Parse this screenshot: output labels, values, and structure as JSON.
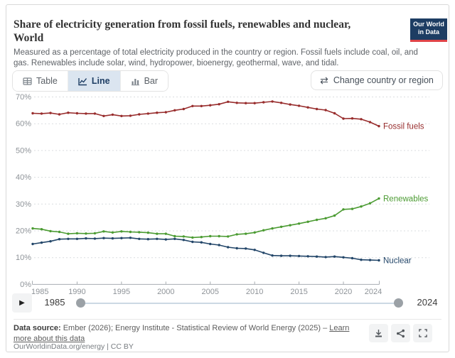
{
  "header": {
    "title_line1": "Share of electricity generation from fossil fuels, renewables and nuclear,",
    "title_line2": "World",
    "subtitle": "Measured as a percentage of total electricity produced in the country or region. Fossil fuels include coal, oil, and gas. Renewables include solar, wind, hydropower, bioenergy, geothermal, wave, and tidal.",
    "logo_line1": "Our World",
    "logo_line2": "in Data"
  },
  "toolbar": {
    "tabs": [
      {
        "label": "Table",
        "active": false
      },
      {
        "label": "Line",
        "active": true
      },
      {
        "label": "Bar",
        "active": false
      }
    ],
    "change_button": "Change country or region",
    "swap_icon": "⇄"
  },
  "chart_data": {
    "type": "line",
    "title": "Share of electricity generation from fossil fuels, renewables and nuclear, World",
    "unit": "%",
    "grid": "horizontal-dashed",
    "legend": "end-of-line entity labels",
    "ylim": [
      0,
      70
    ],
    "yticks": [
      0,
      10,
      20,
      30,
      40,
      50,
      60,
      70
    ],
    "xticks": [
      1985,
      1990,
      1995,
      2000,
      2005,
      2010,
      2015,
      2020,
      2024
    ],
    "x": [
      1985,
      1986,
      1987,
      1988,
      1989,
      1990,
      1991,
      1992,
      1993,
      1994,
      1995,
      1996,
      1997,
      1998,
      1999,
      2000,
      2001,
      2002,
      2003,
      2004,
      2005,
      2006,
      2007,
      2008,
      2009,
      2010,
      2011,
      2012,
      2013,
      2014,
      2015,
      2016,
      2017,
      2018,
      2019,
      2020,
      2021,
      2022,
      2023,
      2024
    ],
    "series": [
      {
        "name": "Fossil fuels",
        "color": "#982d2d",
        "values": [
          63.9,
          63.8,
          64.0,
          63.5,
          64.1,
          63.9,
          63.8,
          63.8,
          62.9,
          63.4,
          62.9,
          63.0,
          63.5,
          63.8,
          64.1,
          64.3,
          65.0,
          65.5,
          66.6,
          66.6,
          66.9,
          67.3,
          68.2,
          67.8,
          67.7,
          67.7,
          68.0,
          68.3,
          67.8,
          67.2,
          66.7,
          66.1,
          65.5,
          65.1,
          63.9,
          61.9,
          62.0,
          61.7,
          60.6,
          59.1
        ]
      },
      {
        "name": "Renewables",
        "color": "#4b9b32",
        "values": [
          20.9,
          20.6,
          19.9,
          19.6,
          18.9,
          19.1,
          19.0,
          19.1,
          19.8,
          19.4,
          19.8,
          19.6,
          19.5,
          19.3,
          18.9,
          18.9,
          18.0,
          17.9,
          17.5,
          17.7,
          18.0,
          18.0,
          17.9,
          18.7,
          18.9,
          19.4,
          20.2,
          20.9,
          21.5,
          22.1,
          22.7,
          23.4,
          24.1,
          24.7,
          25.7,
          28.0,
          28.2,
          29.1,
          30.3,
          32.1
        ]
      },
      {
        "name": "Nuclear",
        "color": "#234669",
        "values": [
          15.1,
          15.6,
          16.1,
          16.9,
          17.0,
          17.0,
          17.2,
          17.1,
          17.3,
          17.2,
          17.3,
          17.4,
          17.0,
          16.9,
          17.0,
          16.8,
          17.0,
          16.6,
          15.9,
          15.7,
          15.1,
          14.7,
          13.9,
          13.5,
          13.4,
          12.9,
          11.8,
          10.8,
          10.7,
          10.7,
          10.6,
          10.5,
          10.4,
          10.2,
          10.4,
          10.1,
          9.8,
          9.2,
          9.1,
          9.0
        ]
      }
    ]
  },
  "timeline": {
    "play_icon": "▶",
    "start_year": "1985",
    "end_year": "2024"
  },
  "footer": {
    "source_label": "Data source:",
    "source_text": " Ember (2026); Energy Institute - Statistical Review of World Energy (2025) – ",
    "source_link": "Learn more about this data",
    "credit": "OurWorldinData.org/energy | CC BY"
  },
  "colors": {
    "accent_navy": "#1d3d63",
    "logo_red": "#e04448",
    "active_tab_bg": "#dbe5f0",
    "axis_label": "#8e9398",
    "gridline": "#dadde0"
  }
}
